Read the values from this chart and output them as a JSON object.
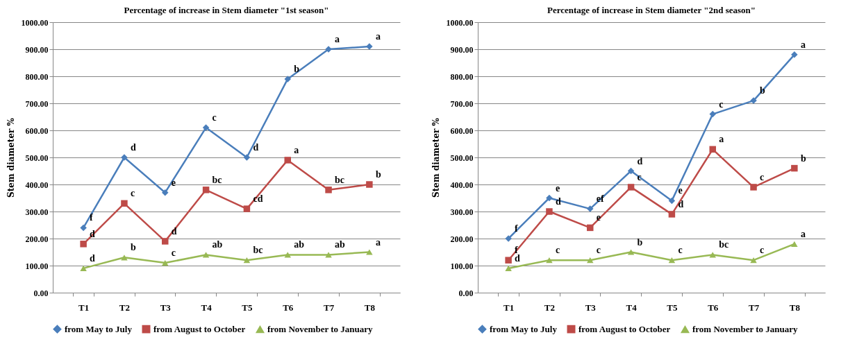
{
  "chart_data": [
    {
      "type": "line",
      "title": "Percentage of increase in Stem diameter \"1st season\"",
      "ylabel": "Stem diameter %",
      "categories": [
        "T1",
        "T2",
        "T3",
        "T4",
        "T5",
        "T6",
        "T7",
        "T8"
      ],
      "series": [
        {
          "name": "from May to July",
          "color": "#4a7ebb",
          "marker": "diamond",
          "values": [
            240,
            500,
            370,
            610,
            500,
            790,
            900,
            910
          ]
        },
        {
          "name": "from August to October",
          "color": "#be4b48",
          "marker": "square",
          "values": [
            180,
            330,
            190,
            380,
            310,
            490,
            380,
            400
          ]
        },
        {
          "name": "from November to January",
          "color": "#98b954",
          "marker": "triangle",
          "values": [
            90,
            130,
            110,
            140,
            120,
            140,
            140,
            150
          ]
        }
      ],
      "ylim": [
        0,
        1000
      ],
      "yticks": [
        {
          "value": 0,
          "label": "0.00"
        },
        {
          "value": 100,
          "label": "100.00"
        },
        {
          "value": 200,
          "label": "200.00"
        },
        {
          "value": 300,
          "label": "300.00"
        },
        {
          "value": 400,
          "label": "400.00"
        },
        {
          "value": 500,
          "label": "500.00"
        },
        {
          "value": 600,
          "label": "600.00"
        },
        {
          "value": 700,
          "label": "700.00"
        },
        {
          "value": 800,
          "label": "800.00"
        },
        {
          "value": 900,
          "label": "900.00"
        },
        {
          "value": 1000,
          "label": "1000.00"
        }
      ],
      "grid": "y",
      "legend": "bottom",
      "line_style": "solid",
      "annotations": [
        {
          "text": "f",
          "x": "T1",
          "y": 240
        },
        {
          "text": "d",
          "x": "T2",
          "y": 500
        },
        {
          "text": "e",
          "x": "T3",
          "y": 370
        },
        {
          "text": "c",
          "x": "T4",
          "y": 610
        },
        {
          "text": "d",
          "x": "T5",
          "y": 500
        },
        {
          "text": "b",
          "x": "T6",
          "y": 790
        },
        {
          "text": "a",
          "x": "T7",
          "y": 900
        },
        {
          "text": "a",
          "x": "T8",
          "y": 910
        },
        {
          "text": "d",
          "x": "T1",
          "y": 180
        },
        {
          "text": "c",
          "x": "T2",
          "y": 330
        },
        {
          "text": "d",
          "x": "T3",
          "y": 190
        },
        {
          "text": "bc",
          "x": "T4",
          "y": 380
        },
        {
          "text": "cd",
          "x": "T5",
          "y": 310
        },
        {
          "text": "a",
          "x": "T6",
          "y": 490
        },
        {
          "text": "bc",
          "x": "T7",
          "y": 380
        },
        {
          "text": "b",
          "x": "T8",
          "y": 400
        },
        {
          "text": "d",
          "x": "T1",
          "y": 90
        },
        {
          "text": "b",
          "x": "T2",
          "y": 130
        },
        {
          "text": "c",
          "x": "T3",
          "y": 110
        },
        {
          "text": "ab",
          "x": "T4",
          "y": 140
        },
        {
          "text": "bc",
          "x": "T5",
          "y": 120
        },
        {
          "text": "ab",
          "x": "T6",
          "y": 140
        },
        {
          "text": "ab",
          "x": "T7",
          "y": 140
        },
        {
          "text": "a",
          "x": "T8",
          "y": 150
        }
      ]
    },
    {
      "type": "line",
      "title": "Percentage of increase in Stem diameter \"2nd season\"",
      "ylabel": "Stem diameter %",
      "categories": [
        "T1",
        "T2",
        "T3",
        "T4",
        "T5",
        "T6",
        "T7",
        "T8"
      ],
      "series": [
        {
          "name": "from May to July",
          "color": "#4a7ebb",
          "marker": "diamond",
          "values": [
            200,
            350,
            310,
            450,
            340,
            660,
            710,
            880
          ]
        },
        {
          "name": "from August to October",
          "color": "#be4b48",
          "marker": "square",
          "values": [
            120,
            300,
            240,
            390,
            290,
            530,
            390,
            460
          ]
        },
        {
          "name": "from November to January",
          "color": "#98b954",
          "marker": "triangle",
          "values": [
            90,
            120,
            120,
            150,
            120,
            140,
            120,
            180
          ]
        }
      ],
      "ylim": [
        0,
        1000
      ],
      "yticks": [
        {
          "value": 0,
          "label": "0.00"
        },
        {
          "value": 100,
          "label": "100.00"
        },
        {
          "value": 200,
          "label": "200.00"
        },
        {
          "value": 300,
          "label": "300.00"
        },
        {
          "value": 400,
          "label": "400.00"
        },
        {
          "value": 500,
          "label": "500.00"
        },
        {
          "value": 600,
          "label": "600.00"
        },
        {
          "value": 700,
          "label": "700.00"
        },
        {
          "value": 800,
          "label": "800.00"
        },
        {
          "value": 900,
          "label": "900.00"
        },
        {
          "value": 1000,
          "label": "1000.00"
        }
      ],
      "grid": "y",
      "legend": "bottom",
      "line_style": "solid",
      "annotations": [
        {
          "text": "f",
          "x": "T1",
          "y": 200
        },
        {
          "text": "e",
          "x": "T2",
          "y": 350
        },
        {
          "text": "ef",
          "x": "T3",
          "y": 310
        },
        {
          "text": "d",
          "x": "T4",
          "y": 450
        },
        {
          "text": "e",
          "x": "T5",
          "y": 340
        },
        {
          "text": "c",
          "x": "T6",
          "y": 660
        },
        {
          "text": "b",
          "x": "T7",
          "y": 710
        },
        {
          "text": "a",
          "x": "T8",
          "y": 880
        },
        {
          "text": "f",
          "x": "T1",
          "y": 120
        },
        {
          "text": "d",
          "x": "T2",
          "y": 300
        },
        {
          "text": "e",
          "x": "T3",
          "y": 240
        },
        {
          "text": "c",
          "x": "T4",
          "y": 390
        },
        {
          "text": "d",
          "x": "T5",
          "y": 290
        },
        {
          "text": "a",
          "x": "T6",
          "y": 530
        },
        {
          "text": "c",
          "x": "T7",
          "y": 390
        },
        {
          "text": "b",
          "x": "T8",
          "y": 460
        },
        {
          "text": "d",
          "x": "T1",
          "y": 90
        },
        {
          "text": "c",
          "x": "T2",
          "y": 120
        },
        {
          "text": "c",
          "x": "T3",
          "y": 120
        },
        {
          "text": "b",
          "x": "T4",
          "y": 150
        },
        {
          "text": "c",
          "x": "T5",
          "y": 120
        },
        {
          "text": "bc",
          "x": "T6",
          "y": 140
        },
        {
          "text": "c",
          "x": "T7",
          "y": 120
        },
        {
          "text": "a",
          "x": "T8",
          "y": 180
        }
      ]
    }
  ]
}
